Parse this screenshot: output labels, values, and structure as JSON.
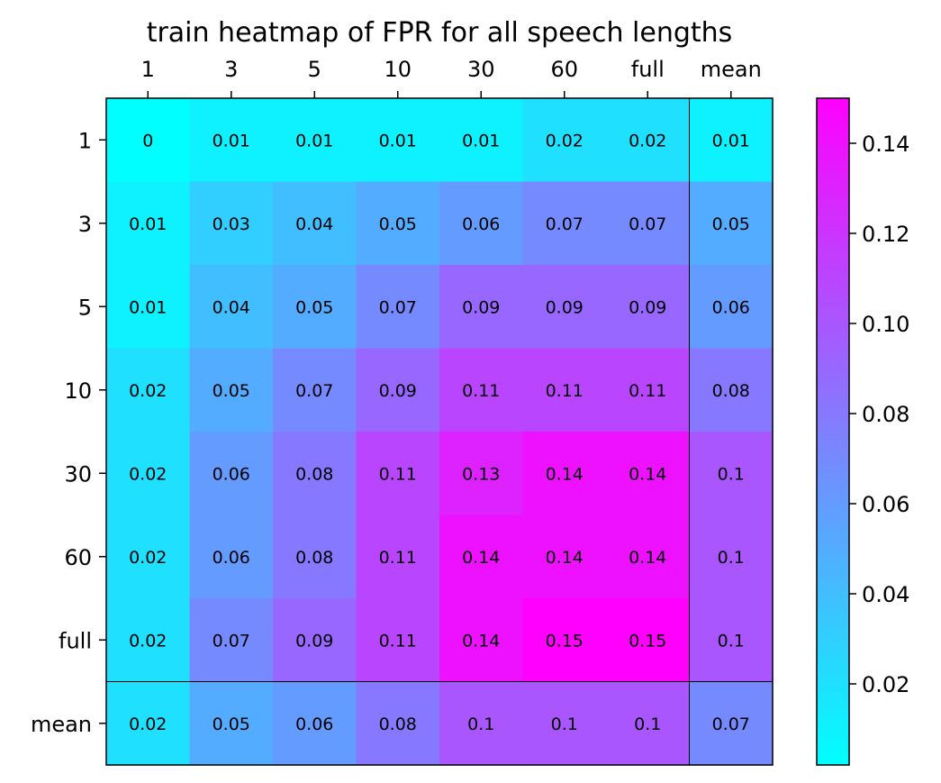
{
  "chart_data": {
    "type": "heatmap",
    "title": "train heatmap of FPR for all speech lengths",
    "x_categories": [
      "1",
      "3",
      "5",
      "10",
      "30",
      "60",
      "full",
      "mean"
    ],
    "y_categories": [
      "1",
      "3",
      "5",
      "10",
      "30",
      "60",
      "full",
      "mean"
    ],
    "x_tick_position": "top",
    "values": [
      [
        0.0,
        0.01,
        0.01,
        0.01,
        0.01,
        0.02,
        0.02,
        0.01
      ],
      [
        0.01,
        0.03,
        0.04,
        0.05,
        0.06,
        0.07,
        0.07,
        0.05
      ],
      [
        0.01,
        0.04,
        0.05,
        0.07,
        0.09,
        0.09,
        0.09,
        0.06
      ],
      [
        0.02,
        0.05,
        0.07,
        0.09,
        0.11,
        0.11,
        0.11,
        0.08
      ],
      [
        0.02,
        0.06,
        0.08,
        0.11,
        0.13,
        0.14,
        0.14,
        0.1
      ],
      [
        0.02,
        0.06,
        0.08,
        0.11,
        0.14,
        0.14,
        0.14,
        0.1
      ],
      [
        0.02,
        0.07,
        0.09,
        0.11,
        0.14,
        0.15,
        0.15,
        0.1
      ],
      [
        0.02,
        0.05,
        0.06,
        0.08,
        0.1,
        0.1,
        0.1,
        0.07
      ]
    ],
    "colormap": "cool",
    "color_low": "#00ffff",
    "color_high": "#ff00ff",
    "colorbar": {
      "range": [
        0.002,
        0.15
      ],
      "ticks": [
        0.02,
        0.04,
        0.06,
        0.08,
        0.1,
        0.12,
        0.14
      ],
      "tick_labels": [
        "0.02",
        "0.04",
        "0.06",
        "0.08",
        "0.10",
        "0.12",
        "0.14"
      ],
      "placement": "right"
    },
    "separator_lines": "between last data row/column and mean",
    "grid": false
  }
}
